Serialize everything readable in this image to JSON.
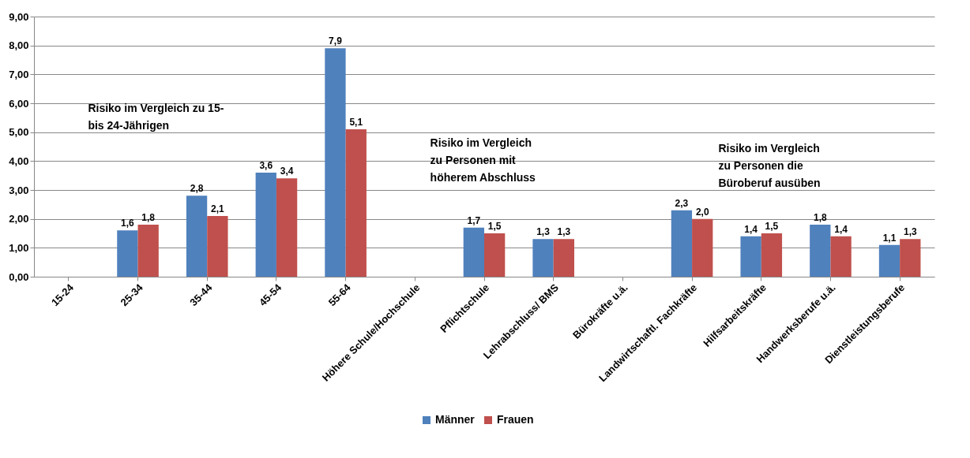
{
  "chart_data": {
    "type": "bar",
    "categories": [
      "15-24",
      "25-34",
      "35-44",
      "45-54",
      "55-64",
      "Höhere Schule/Hochschule",
      "Pflichtschule",
      "Lehrabschluss/ BMS",
      "Bürokräfte u.ä.",
      "Landwirtschaftl. Fachkräfte",
      "Hilfsarbeitskräfte",
      "Handwerksberufe u.ä.",
      "Dienstleistungsberufe"
    ],
    "series": [
      {
        "name": "Männer",
        "color": "#4f81bd",
        "values": [
          null,
          1.6,
          2.8,
          3.6,
          7.9,
          null,
          1.7,
          1.3,
          null,
          2.3,
          1.4,
          1.8,
          1.1
        ],
        "value_labels": [
          null,
          "1,6",
          "2,8",
          "3,6",
          "7,9",
          null,
          "1,7",
          "1,3",
          null,
          "2,3",
          "1,4",
          "1,8",
          "1,1"
        ]
      },
      {
        "name": "Frauen",
        "color": "#c0504d",
        "values": [
          null,
          1.8,
          2.1,
          3.4,
          5.1,
          null,
          1.5,
          1.3,
          null,
          2.0,
          1.5,
          1.4,
          1.3
        ],
        "value_labels": [
          null,
          "1,8",
          "2,1",
          "3,4",
          "5,1",
          null,
          "1,5",
          "1,3",
          null,
          "2,0",
          "1,5",
          "1,4",
          "1,3"
        ]
      }
    ],
    "ylim": [
      0,
      9
    ],
    "yticks": [
      {
        "value": 0,
        "label": "0,00"
      },
      {
        "value": 1,
        "label": "1,00"
      },
      {
        "value": 2,
        "label": "2,00"
      },
      {
        "value": 3,
        "label": "3,00"
      },
      {
        "value": 4,
        "label": "4,00"
      },
      {
        "value": 5,
        "label": "5,00"
      },
      {
        "value": 6,
        "label": "6,00"
      },
      {
        "value": 7,
        "label": "7,00"
      },
      {
        "value": 8,
        "label": "8,00"
      },
      {
        "value": 9,
        "label": "9,00"
      }
    ],
    "grid": "y",
    "legend": "bottom",
    "data_labels": true,
    "annotations": [
      "Risiko im Vergleich zu 15-\nbis 24-Jährigen",
      "Risiko im Vergleich\nzu Personen mit\nhöherem Abschluss",
      "Risiko im Vergleich\nzu Personen die\nBüroberuf ausüben"
    ]
  }
}
